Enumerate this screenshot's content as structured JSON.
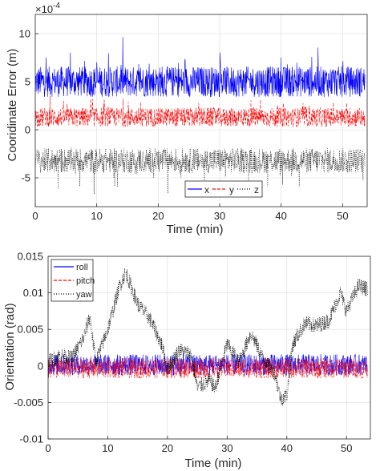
{
  "chart_data": [
    {
      "type": "line",
      "xlabel": "Time (min)",
      "ylabel": "Cooridinate Error (m)",
      "exponent_label": "×10",
      "exponent_power": "-4",
      "xlim": [
        0,
        54
      ],
      "ylim": [
        -8,
        12
      ],
      "xticks": [
        0,
        10,
        20,
        30,
        40,
        50
      ],
      "yticks": [
        -5,
        0,
        5,
        10
      ],
      "grid": true,
      "legend_position": "bottom-center",
      "legend_orientation": "horizontal",
      "series": [
        {
          "name": "x",
          "color": "#0000ff",
          "style": "solid",
          "mean": 5.0,
          "noise": 1.6,
          "spike": 3.4,
          "min": 1.0,
          "max": 11.8
        },
        {
          "name": "y",
          "color": "#ff0000",
          "style": "dashed",
          "mean": 1.3,
          "noise": 1.0,
          "spike": 1.7,
          "min": -2.0,
          "max": 4.6
        },
        {
          "name": "z",
          "color": "#000000",
          "style": "dotted",
          "mean": -3.2,
          "noise": 1.3,
          "spike": -2.5,
          "min": -7.8,
          "max": 0.5
        }
      ]
    },
    {
      "type": "line",
      "xlabel": "Time (min)",
      "ylabel": "Orientation (rad)",
      "xlim": [
        0,
        54
      ],
      "ylim": [
        -0.01,
        0.015
      ],
      "xticks": [
        0,
        10,
        20,
        30,
        40,
        50
      ],
      "yticks": [
        -0.01,
        -0.005,
        0,
        0.005,
        0.01,
        0.015
      ],
      "ytick_labels": [
        "-0.01",
        "-0.005",
        "0",
        "0.005",
        "0.01",
        "0.015"
      ],
      "grid": true,
      "legend_position": "top-left",
      "series": [
        {
          "name": "roll",
          "color": "#0000ff",
          "style": "solid",
          "band": [
            -0.0013,
            0.0016
          ]
        },
        {
          "name": "pitch",
          "color": "#ff0000",
          "style": "dashed",
          "band": [
            -0.0017,
            0.0011
          ]
        },
        {
          "name": "yaw",
          "color": "#000000",
          "style": "dotted",
          "trend_x": [
            0,
            2,
            4,
            6,
            7,
            8,
            10,
            12,
            13,
            15,
            17,
            19,
            20,
            22,
            24,
            25,
            27,
            28,
            30,
            32,
            34,
            36,
            38,
            39,
            40,
            41,
            43,
            45,
            47,
            49,
            50,
            52,
            53.5
          ],
          "trend_y": [
            0.0005,
            0.0015,
            0.001,
            0.004,
            0.0068,
            0.0005,
            0.005,
            0.011,
            0.0128,
            0.0085,
            0.0065,
            0.003,
            -0.0005,
            0.0022,
            0.0015,
            -0.003,
            -0.002,
            -0.003,
            0.003,
            0.0005,
            0.0045,
            0.001,
            -0.001,
            -0.0045,
            -0.004,
            0.003,
            0.0058,
            0.0055,
            0.0062,
            0.01,
            0.0075,
            0.011,
            0.0105
          ],
          "noise": 0.0011
        }
      ]
    }
  ]
}
